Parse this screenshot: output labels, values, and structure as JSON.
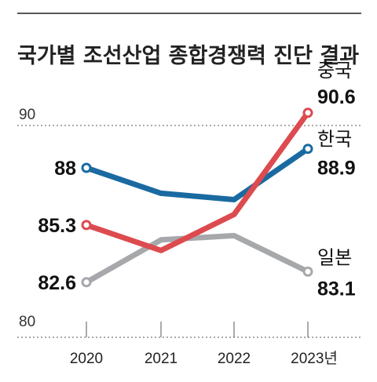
{
  "chart_data": {
    "type": "line",
    "title": "국가별 조선산업 종합경쟁력 진단 결과",
    "x": [
      "2020",
      "2021",
      "2022",
      "2023년"
    ],
    "ylim": [
      80,
      90
    ],
    "yticks": [
      "90",
      "80"
    ],
    "grid": "dotted reference lines at 90 and 80",
    "series": [
      {
        "name": "한국",
        "color": "#1a6aa1",
        "values": [
          88,
          86.8,
          86.5,
          88.9
        ],
        "start_label": "88",
        "end_label": "88.9"
      },
      {
        "name": "중국",
        "color": "#dc4b4f",
        "values": [
          85.3,
          84.1,
          85.8,
          90.6
        ],
        "start_label": "85.3",
        "end_label": "90.6"
      },
      {
        "name": "일본",
        "color": "#a7a8ab",
        "values": [
          82.6,
          84.6,
          84.8,
          83.1
        ],
        "start_label": "82.6",
        "end_label": "83.1"
      }
    ]
  }
}
